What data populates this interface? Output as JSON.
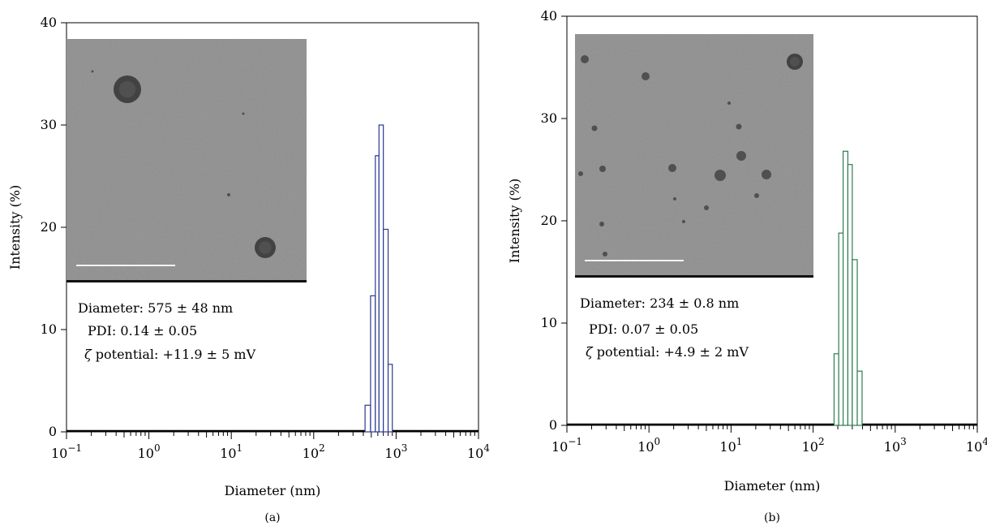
{
  "chart_data": [
    {
      "id": "a",
      "type": "bar",
      "panel_label": "(a)",
      "xlabel": "Diameter (nm)",
      "ylabel": "Intensity (%)",
      "xscale": "log",
      "xlim": [
        0.1,
        10000
      ],
      "ylim": [
        0,
        40
      ],
      "yticks": [
        0,
        10,
        20,
        30,
        40
      ],
      "xticks": [
        {
          "value": 0.1,
          "base": "10",
          "exp": "−1"
        },
        {
          "value": 1,
          "base": "10",
          "exp": "0"
        },
        {
          "value": 10,
          "base": "10",
          "exp": "1"
        },
        {
          "value": 100,
          "base": "10",
          "exp": "2"
        },
        {
          "value": 1000,
          "base": "10",
          "exp": "3"
        },
        {
          "value": 10000,
          "base": "10",
          "exp": "4"
        }
      ],
      "bar_color": "#2b3990",
      "bins": [
        {
          "x0": 420,
          "x1": 490,
          "value": 2.6
        },
        {
          "x0": 490,
          "x1": 560,
          "value": 13.3
        },
        {
          "x0": 560,
          "x1": 620,
          "value": 27.0
        },
        {
          "x0": 620,
          "x1": 700,
          "value": 30.0
        },
        {
          "x0": 700,
          "x1": 800,
          "value": 19.8
        },
        {
          "x0": 800,
          "x1": 900,
          "value": 6.6
        }
      ],
      "annotations": [
        "Diameter: 575 ± 48 nm",
        "PDI: 0.14 ± 0.05",
        "ζ potential: +11.9 ± 5 mV"
      ],
      "inset": "TEM micrograph with scale bar",
      "grid": false
    },
    {
      "id": "b",
      "type": "bar",
      "panel_label": "(b)",
      "xlabel": "Diameter (nm)",
      "ylabel": "Intensity (%)",
      "xscale": "log",
      "xlim": [
        0.1,
        10000
      ],
      "ylim": [
        0,
        40
      ],
      "yticks": [
        0,
        10,
        20,
        30,
        40
      ],
      "xticks": [
        {
          "value": 0.1,
          "base": "10",
          "exp": "−1"
        },
        {
          "value": 1,
          "base": "10",
          "exp": "0"
        },
        {
          "value": 10,
          "base": "10",
          "exp": "1"
        },
        {
          "value": 100,
          "base": "10",
          "exp": "2"
        },
        {
          "value": 1000,
          "base": "10",
          "exp": "3"
        },
        {
          "value": 10000,
          "base": "10",
          "exp": "4"
        }
      ],
      "bar_color": "#2e7d4f",
      "bins": [
        {
          "x0": 180,
          "x1": 205,
          "value": 7.0
        },
        {
          "x0": 205,
          "x1": 232,
          "value": 18.8
        },
        {
          "x0": 232,
          "x1": 265,
          "value": 26.8
        },
        {
          "x0": 265,
          "x1": 300,
          "value": 25.5
        },
        {
          "x0": 300,
          "x1": 345,
          "value": 16.2
        },
        {
          "x0": 345,
          "x1": 395,
          "value": 5.3
        }
      ],
      "annotations": [
        "Diameter: 234 ± 0.8 nm",
        "PDI: 0.07 ± 0.05",
        "ζ potential: +4.9 ± 2 mV"
      ],
      "inset": "TEM micrograph with scale bar",
      "grid": false
    }
  ]
}
